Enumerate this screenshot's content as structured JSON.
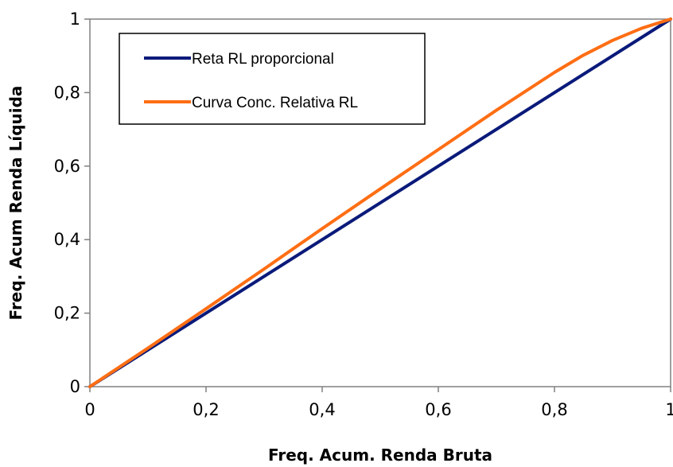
{
  "chart_data": {
    "type": "line",
    "xlabel": "Freq. Acum. Renda Bruta",
    "ylabel": "Freq. Acum Renda Líquida",
    "xlim": [
      0,
      1
    ],
    "ylim": [
      0,
      1
    ],
    "x_ticks": [
      "0",
      "0,2",
      "0,4",
      "0,6",
      "0,8",
      "1"
    ],
    "y_ticks": [
      "0",
      "0,2",
      "0,4",
      "0,6",
      "0,8",
      "1"
    ],
    "grid": false,
    "legend_position": "top-left",
    "series": [
      {
        "name": "Reta RL proporcional",
        "color": "#0a1a7a",
        "x": [
          0,
          1
        ],
        "y": [
          0,
          1
        ]
      },
      {
        "name": "Curva Conc. Relativa RL",
        "color": "#ff6e14",
        "x": [
          0,
          0.1,
          0.2,
          0.3,
          0.4,
          0.5,
          0.6,
          0.7,
          0.8,
          0.85,
          0.9,
          0.95,
          1
        ],
        "y": [
          0,
          0.105,
          0.212,
          0.32,
          0.43,
          0.538,
          0.645,
          0.752,
          0.855,
          0.902,
          0.942,
          0.975,
          1
        ]
      }
    ]
  }
}
